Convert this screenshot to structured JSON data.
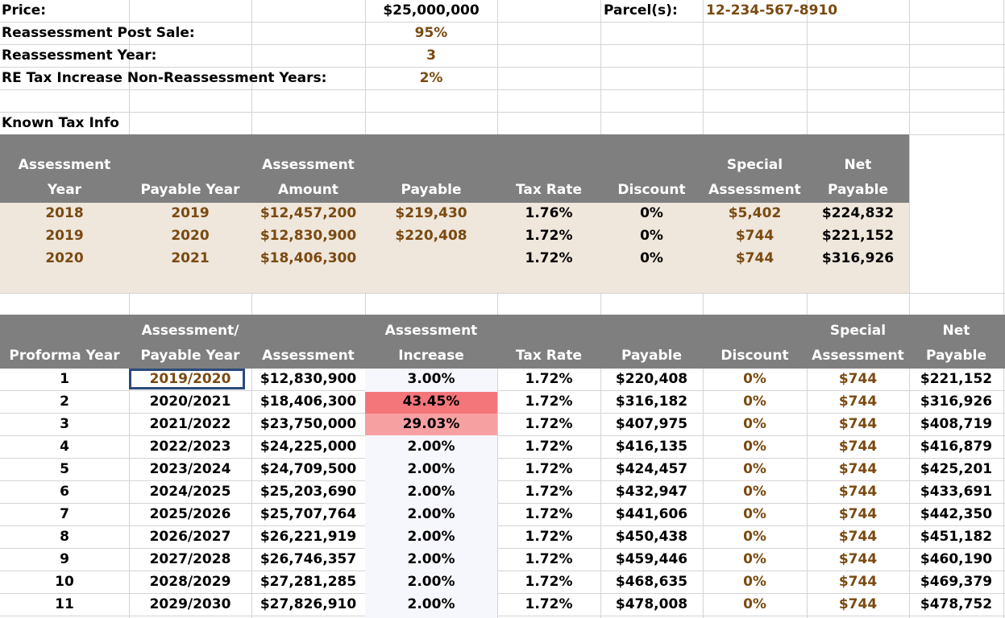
{
  "inputs": {
    "price_label": "Price:",
    "price_value": "$25,000,000",
    "parcel_label": "Parcel(s):",
    "parcel_value": "12-234-567-8910",
    "reassess_label": "Reassessment Post Sale:",
    "reassess_value": "95%",
    "reassess_year_label": "Reassessment Year:",
    "reassess_year_value": "3",
    "re_tax_label": "RE Tax Increase Non-Reassessment Years:",
    "re_tax_value": "2%"
  },
  "known": {
    "title": "Known Tax Info",
    "headers": [
      [
        "Assessment",
        "Year"
      ],
      [
        "",
        "Payable Year"
      ],
      [
        "Assessment",
        "Amount"
      ],
      [
        "",
        "Payable"
      ],
      [
        "",
        "Tax Rate"
      ],
      [
        "",
        "Discount"
      ],
      [
        "Special",
        "Assessment"
      ],
      [
        "Net",
        "Payable"
      ]
    ],
    "rows": [
      [
        "2018",
        "2019",
        "$12,457,200",
        "$219,430",
        "1.76%",
        "0%",
        "$5,402",
        "$224,832"
      ],
      [
        "2019",
        "2020",
        "$12,830,900",
        "$220,408",
        "1.72%",
        "0%",
        "$744",
        "$221,152"
      ],
      [
        "2020",
        "2021",
        "$18,406,300",
        "",
        "1.72%",
        "0%",
        "$744",
        "$316,926"
      ]
    ]
  },
  "proforma": {
    "headers": [
      [
        "",
        "Proforma Year"
      ],
      [
        "Assessment/",
        "Payable Year"
      ],
      [
        "",
        "Assessment"
      ],
      [
        "Assessment",
        "Increase"
      ],
      [
        "",
        "Tax Rate"
      ],
      [
        "",
        "Payable"
      ],
      [
        "",
        "Discount"
      ],
      [
        "Special",
        "Assessment"
      ],
      [
        "Net",
        "Payable"
      ]
    ],
    "rows": [
      [
        "1",
        "2019/2020",
        "$12,830,900",
        "3.00%",
        "1.72%",
        "$220,408",
        "0%",
        "$744",
        "$221,152"
      ],
      [
        "2",
        "2020/2021",
        "$18,406,300",
        "43.45%",
        "1.72%",
        "$316,182",
        "0%",
        "$744",
        "$316,926"
      ],
      [
        "3",
        "2021/2022",
        "$23,750,000",
        "29.03%",
        "1.72%",
        "$407,975",
        "0%",
        "$744",
        "$408,719"
      ],
      [
        "4",
        "2022/2023",
        "$24,225,000",
        "2.00%",
        "1.72%",
        "$416,135",
        "0%",
        "$744",
        "$416,879"
      ],
      [
        "5",
        "2023/2024",
        "$24,709,500",
        "2.00%",
        "1.72%",
        "$424,457",
        "0%",
        "$744",
        "$425,201"
      ],
      [
        "6",
        "2024/2025",
        "$25,203,690",
        "2.00%",
        "1.72%",
        "$432,947",
        "0%",
        "$744",
        "$433,691"
      ],
      [
        "7",
        "2025/2026",
        "$25,707,764",
        "2.00%",
        "1.72%",
        "$441,606",
        "0%",
        "$744",
        "$442,350"
      ],
      [
        "8",
        "2026/2027",
        "$26,221,919",
        "2.00%",
        "1.72%",
        "$450,438",
        "0%",
        "$744",
        "$451,182"
      ],
      [
        "9",
        "2027/2028",
        "$26,746,357",
        "2.00%",
        "1.72%",
        "$459,446",
        "0%",
        "$744",
        "$460,190"
      ],
      [
        "10",
        "2028/2029",
        "$27,281,285",
        "2.00%",
        "1.72%",
        "$468,635",
        "0%",
        "$744",
        "$469,379"
      ],
      [
        "11",
        "2029/2030",
        "$27,826,910",
        "2.00%",
        "1.72%",
        "$478,008",
        "0%",
        "$744",
        "$478,752"
      ]
    ]
  },
  "colors": {
    "header_gray": "#7f7f7f",
    "known_fill": "#efe6dc",
    "input_brown": "#7a4a10",
    "high_increase": "#f4767a",
    "mid_increase": "#f7a0a2",
    "selection": "#2b4a7a"
  }
}
